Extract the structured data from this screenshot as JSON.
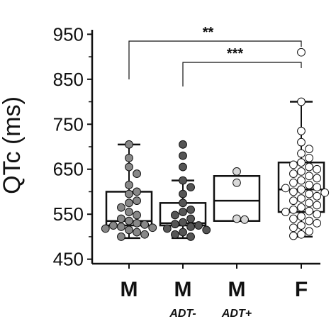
{
  "chart_data": {
    "type": "box",
    "ylabel": "QTc (ms)",
    "ylim": [
      440,
      960
    ],
    "yticks": [
      "450",
      "550",
      "650",
      "750",
      "850",
      "950"
    ],
    "grid": false,
    "categories": [
      {
        "label": "M",
        "sublabel": ""
      },
      {
        "label": "M",
        "sublabel": "ADT-"
      },
      {
        "label": "M",
        "sublabel": "ADT+"
      },
      {
        "label": "F",
        "sublabel": ""
      }
    ],
    "boxes": [
      {
        "whisker_low": 497,
        "q1": 525,
        "median": 535,
        "q3": 600,
        "whisker_high": 705,
        "points": [
          705,
          675,
          655,
          640,
          615,
          600,
          595,
          580,
          575,
          565,
          555,
          548,
          540,
          535,
          530,
          527,
          525,
          522,
          520,
          518,
          515,
          510,
          505,
          500
        ]
      },
      {
        "whisker_low": 497,
        "q1": 525,
        "median": 530,
        "q3": 575,
        "whisker_high": 625,
        "points": [
          705,
          680,
          655,
          625,
          610,
          595,
          575,
          560,
          555,
          548,
          540,
          532,
          528,
          525,
          522,
          518,
          515,
          510,
          505,
          500
        ]
      },
      {
        "whisker_low": 535,
        "q1": 535,
        "median": 580,
        "q3": 635,
        "whisker_high": 635,
        "points": [
          645,
          620,
          540,
          538
        ]
      },
      {
        "whisker_low": 500,
        "q1": 555,
        "median": 605,
        "q3": 665,
        "whisker_high": 800,
        "points": [
          910,
          800,
          735,
          710,
          695,
          685,
          675,
          665,
          660,
          655,
          650,
          645,
          640,
          635,
          630,
          625,
          620,
          615,
          610,
          608,
          605,
          600,
          598,
          595,
          590,
          585,
          580,
          575,
          570,
          565,
          560,
          557,
          555,
          550,
          545,
          540,
          535,
          530,
          525,
          520,
          512,
          505,
          502
        ]
      }
    ],
    "point_colors": [
      "#888888",
      "#555555",
      "#d9d9d9",
      "#ffffff"
    ],
    "significance": [
      {
        "from": 0,
        "to": 3,
        "label": "**"
      },
      {
        "from": 1,
        "to": 3,
        "label": "***"
      }
    ]
  }
}
